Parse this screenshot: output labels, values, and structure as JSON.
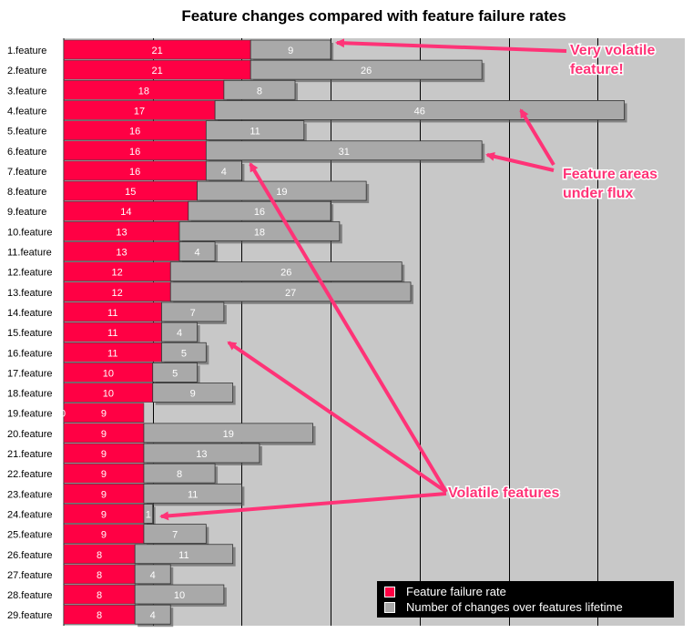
{
  "chart_data": {
    "type": "bar",
    "orientation": "horizontal",
    "stacked": true,
    "title": "Feature changes compared with feature failure rates",
    "categories": [
      "1.feature",
      "2.feature",
      "3.feature",
      "4.feature",
      "5.feature",
      "6.feature",
      "7.feature",
      "8.feature",
      "9.feature",
      "10.feature",
      "11.feature",
      "12.feature",
      "13.feature",
      "14.feature",
      "15.feature",
      "16.feature",
      "17.feature",
      "18.feature",
      "19.feature",
      "20.feature",
      "21.feature",
      "22.feature",
      "23.feature",
      "24.feature",
      "25.feature",
      "26.feature",
      "27.feature",
      "28.feature",
      "29.feature"
    ],
    "series": [
      {
        "name": "Feature failure rate",
        "color": "#ff0044",
        "values": [
          21,
          21,
          18,
          17,
          16,
          16,
          16,
          15,
          14,
          13,
          13,
          12,
          12,
          11,
          11,
          11,
          10,
          10,
          9,
          9,
          9,
          9,
          9,
          9,
          9,
          8,
          8,
          8,
          8
        ]
      },
      {
        "name": "Number of changes over features lifetime",
        "color": "#a9a9a9",
        "values": [
          9,
          26,
          8,
          46,
          11,
          31,
          4,
          19,
          16,
          18,
          4,
          26,
          27,
          7,
          4,
          5,
          5,
          9,
          0,
          19,
          13,
          8,
          11,
          1,
          7,
          11,
          4,
          10,
          4
        ]
      }
    ],
    "xlim": [
      0,
      70
    ],
    "grid": true,
    "legend": "bottom-right"
  },
  "annotations": [
    {
      "id": "very-volatile",
      "lines": [
        "Very volatile",
        "feature!"
      ]
    },
    {
      "id": "flux",
      "lines": [
        "Feature areas",
        "under flux"
      ]
    },
    {
      "id": "volatile",
      "lines": [
        "Volatile features"
      ]
    }
  ],
  "colors": {
    "annotation": "#ff3377",
    "plot_bg": "#c8c8c8",
    "grid": "#000000"
  }
}
